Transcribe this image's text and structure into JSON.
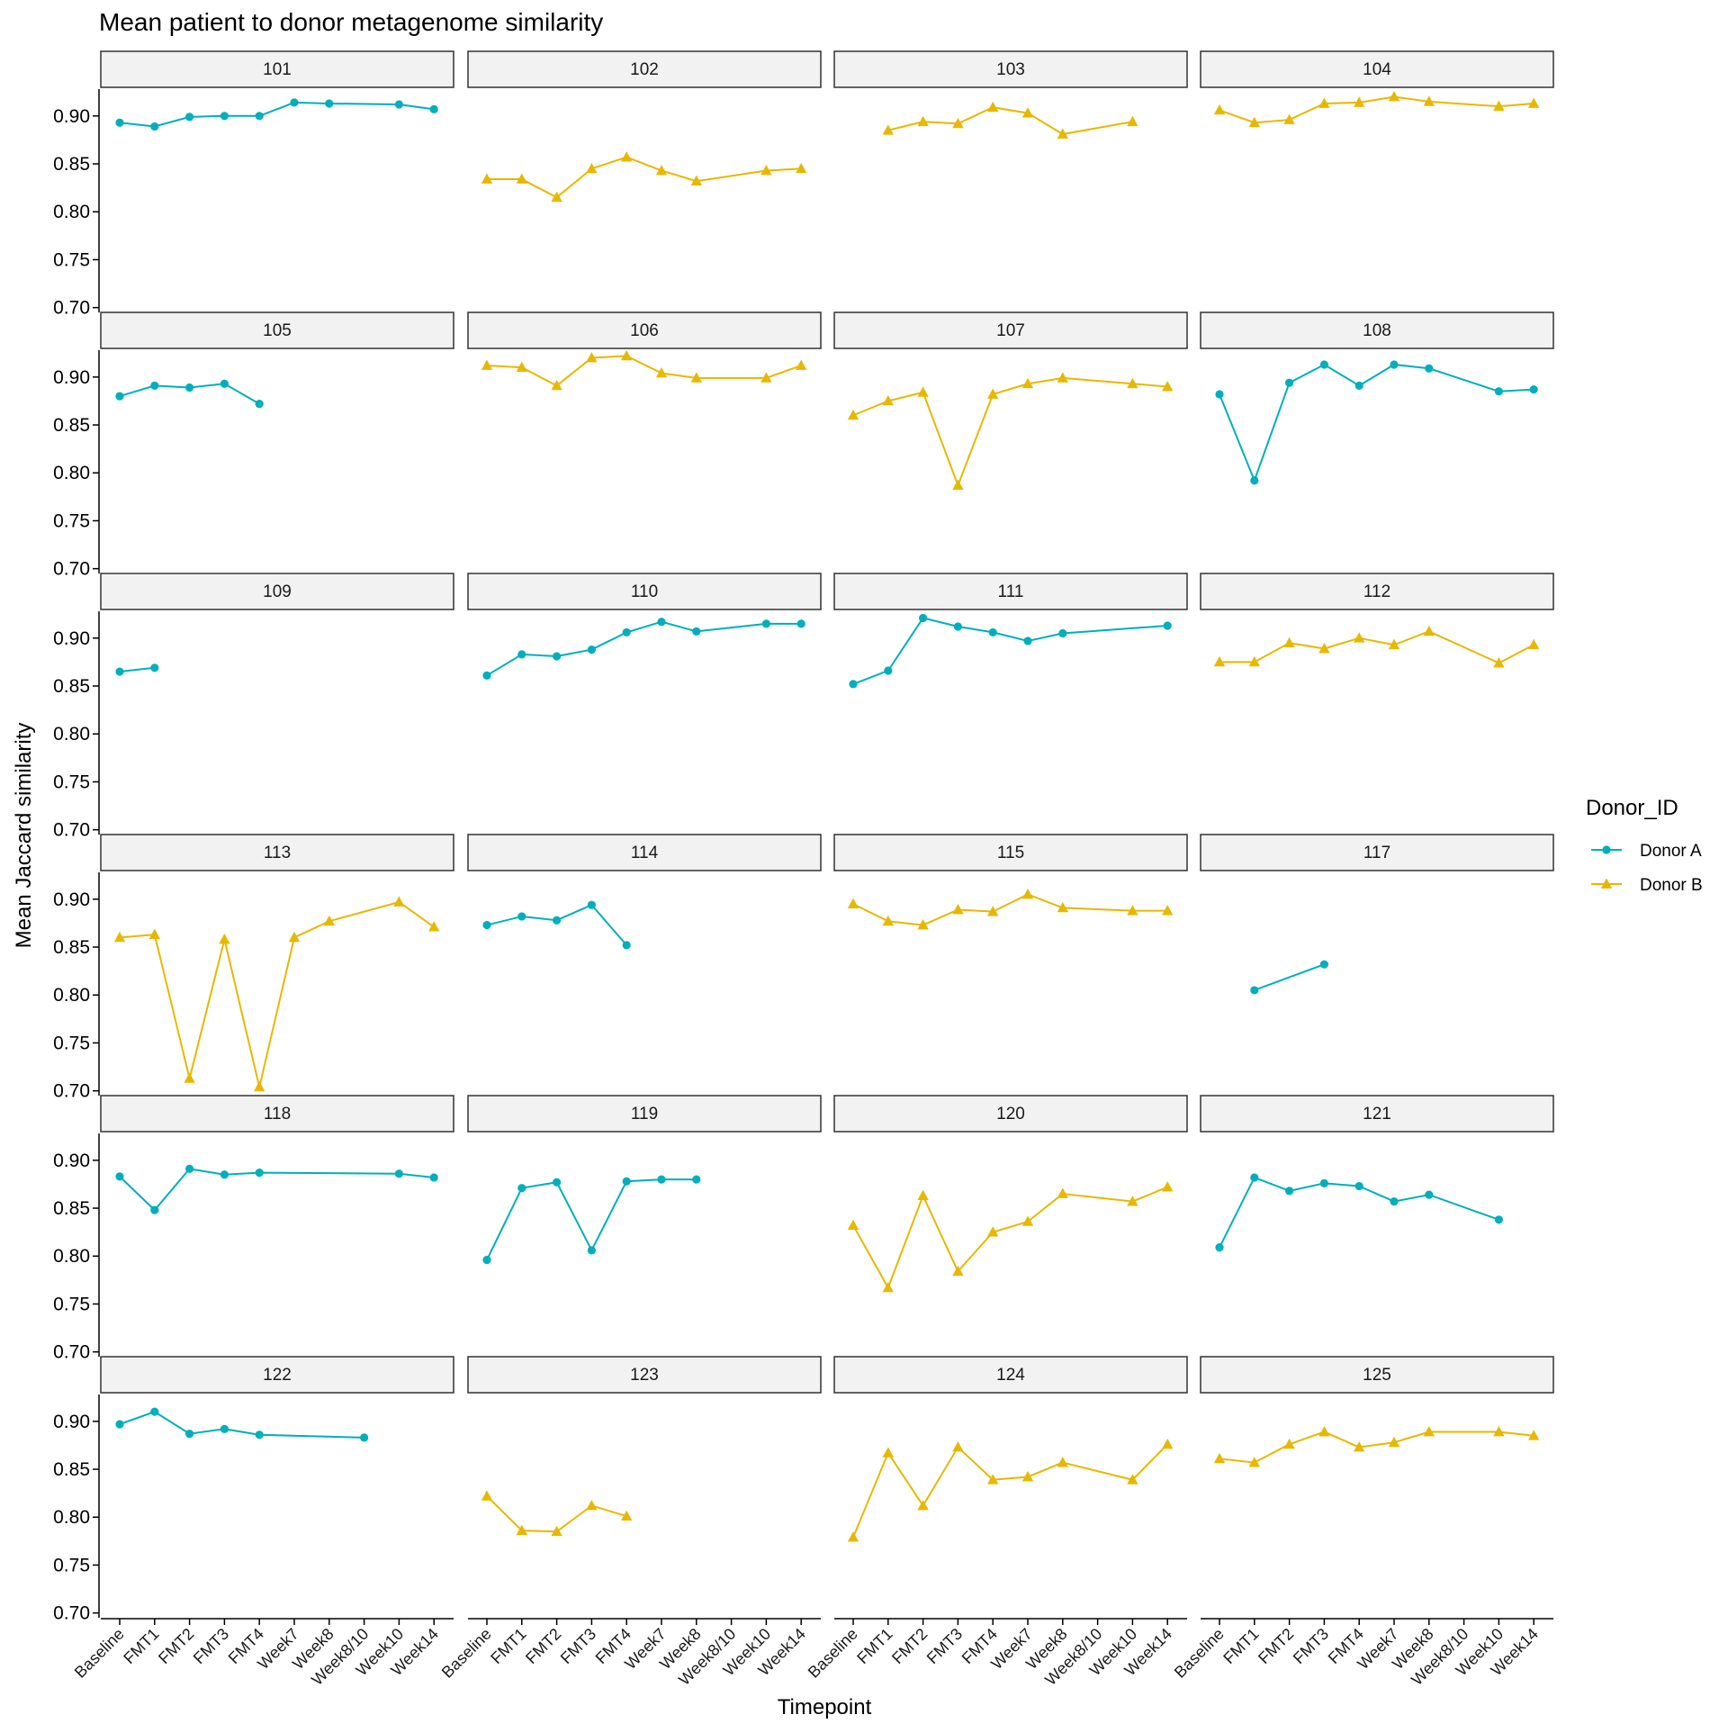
{
  "chart_data": {
    "type": "line",
    "title": "Mean patient to donor metagenome similarity",
    "xlabel": "Timepoint",
    "ylabel": "Mean Jaccard similarity",
    "categories": [
      "Baseline",
      "FMT1",
      "FMT2",
      "FMT3",
      "FMT4",
      "Week7",
      "Week8",
      "Week8/10",
      "Week10",
      "Week14"
    ],
    "ylim": [
      0.695,
      0.928
    ],
    "yticks": [
      0.7,
      0.75,
      0.8,
      0.85,
      0.9
    ],
    "ytick_labels": [
      "0.70",
      "0.75",
      "0.80",
      "0.85",
      "0.90"
    ],
    "grid": false,
    "legend": {
      "title": "Donor_ID",
      "placement": "right",
      "entries": [
        {
          "name": "Donor A",
          "color": "#00AFBB",
          "shape": "circle"
        },
        {
          "name": "Donor B",
          "color": "#E7B800",
          "shape": "triangle"
        }
      ]
    },
    "panels": [
      {
        "label": "101",
        "donor": "Donor A",
        "values": [
          0.893,
          0.889,
          0.899,
          0.9,
          0.9,
          0.914,
          0.913,
          null,
          0.912,
          0.907
        ]
      },
      {
        "label": "102",
        "donor": "Donor B",
        "values": [
          0.834,
          0.834,
          0.815,
          0.845,
          0.857,
          0.843,
          0.832,
          null,
          0.843,
          0.845
        ]
      },
      {
        "label": "103",
        "donor": "Donor B",
        "values": [
          null,
          0.885,
          0.894,
          0.892,
          0.909,
          0.903,
          0.881,
          null,
          0.894,
          null
        ]
      },
      {
        "label": "104",
        "donor": "Donor B",
        "values": [
          0.906,
          0.893,
          0.896,
          0.913,
          0.914,
          0.92,
          0.915,
          null,
          0.91,
          0.913
        ]
      },
      {
        "label": "105",
        "donor": "Donor A",
        "values": [
          0.88,
          0.891,
          0.889,
          0.893,
          0.872,
          null,
          null,
          null,
          null,
          null
        ]
      },
      {
        "label": "106",
        "donor": "Donor B",
        "values": [
          0.912,
          0.91,
          0.891,
          0.92,
          0.922,
          0.904,
          0.899,
          null,
          0.899,
          0.912
        ]
      },
      {
        "label": "107",
        "donor": "Donor B",
        "values": [
          0.86,
          0.875,
          0.884,
          0.787,
          0.882,
          0.893,
          0.899,
          null,
          0.893,
          0.89
        ]
      },
      {
        "label": "108",
        "donor": "Donor A",
        "values": [
          0.882,
          0.792,
          0.894,
          0.913,
          0.891,
          0.913,
          0.909,
          null,
          0.885,
          0.887
        ]
      },
      {
        "label": "109",
        "donor": "Donor A",
        "values": [
          0.865,
          0.869,
          null,
          null,
          null,
          null,
          null,
          null,
          null,
          null
        ]
      },
      {
        "label": "110",
        "donor": "Donor A",
        "values": [
          0.861,
          0.883,
          0.881,
          0.888,
          0.906,
          0.917,
          0.907,
          null,
          0.915,
          0.915
        ]
      },
      {
        "label": "111",
        "donor": "Donor A",
        "values": [
          0.852,
          0.866,
          0.921,
          0.912,
          0.906,
          0.897,
          0.905,
          null,
          null,
          0.913
        ]
      },
      {
        "label": "112",
        "donor": "Donor B",
        "values": [
          0.875,
          0.875,
          0.895,
          0.889,
          0.9,
          0.893,
          0.907,
          null,
          0.874,
          0.893
        ]
      },
      {
        "label": "113",
        "donor": "Donor B",
        "values": [
          0.86,
          0.863,
          0.713,
          0.858,
          0.704,
          0.86,
          0.877,
          null,
          0.897,
          0.871
        ]
      },
      {
        "label": "114",
        "donor": "Donor A",
        "values": [
          0.873,
          0.882,
          0.878,
          0.894,
          0.852,
          null,
          null,
          null,
          null,
          null
        ]
      },
      {
        "label": "115",
        "donor": "Donor B",
        "values": [
          0.895,
          0.877,
          0.873,
          0.889,
          0.887,
          0.905,
          0.891,
          null,
          0.888,
          0.888
        ]
      },
      {
        "label": "117",
        "donor": "Donor A",
        "values": [
          null,
          0.805,
          null,
          0.832,
          null,
          null,
          null,
          null,
          null,
          null
        ]
      },
      {
        "label": "118",
        "donor": "Donor A",
        "values": [
          0.883,
          0.848,
          0.891,
          0.885,
          0.887,
          null,
          null,
          null,
          0.886,
          0.882
        ]
      },
      {
        "label": "119",
        "donor": "Donor A",
        "values": [
          0.796,
          0.871,
          0.877,
          0.806,
          0.878,
          0.88,
          0.88,
          null,
          null,
          null
        ]
      },
      {
        "label": "120",
        "donor": "Donor B",
        "values": [
          0.832,
          0.767,
          0.863,
          0.784,
          0.825,
          0.836,
          0.865,
          null,
          0.857,
          0.872
        ]
      },
      {
        "label": "121",
        "donor": "Donor A",
        "values": [
          0.809,
          0.882,
          0.868,
          0.876,
          0.873,
          0.857,
          0.864,
          null,
          0.838,
          null
        ]
      },
      {
        "label": "122",
        "donor": "Donor A",
        "values": [
          0.897,
          0.91,
          0.887,
          0.892,
          0.886,
          null,
          null,
          0.883,
          null,
          null
        ]
      },
      {
        "label": "123",
        "donor": "Donor B",
        "values": [
          0.822,
          0.786,
          0.785,
          0.812,
          0.801,
          null,
          null,
          null,
          null,
          null
        ]
      },
      {
        "label": "124",
        "donor": "Donor B",
        "values": [
          0.779,
          0.867,
          0.812,
          0.873,
          0.839,
          0.842,
          0.857,
          null,
          0.839,
          0.876
        ]
      },
      {
        "label": "125",
        "donor": "Donor B",
        "values": [
          0.861,
          0.857,
          0.876,
          0.889,
          0.873,
          0.878,
          0.889,
          null,
          0.889,
          0.885
        ]
      }
    ]
  }
}
